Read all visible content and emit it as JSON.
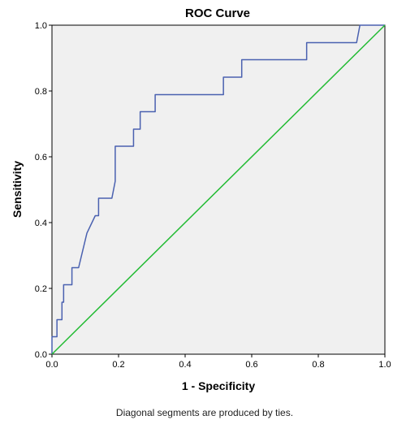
{
  "chart_data": {
    "type": "line",
    "title": "ROC Curve",
    "xlabel": "1 - Specificity",
    "ylabel": "Sensitivity",
    "footnote": "Diagonal segments are produced by ties.",
    "xlim": [
      0,
      1
    ],
    "ylim": [
      0,
      1
    ],
    "x_ticks": [
      "0.0",
      "0.2",
      "0.4",
      "0.6",
      "0.8",
      "1.0"
    ],
    "y_ticks": [
      "0.0",
      "0.2",
      "0.4",
      "0.6",
      "0.8",
      "1.0"
    ],
    "grid": false,
    "plot_background": "#f0f0f0",
    "series": [
      {
        "color": "#4a61b0",
        "x": [
          0.0,
          0.0,
          0.015,
          0.015,
          0.03,
          0.03,
          0.035,
          0.035,
          0.06,
          0.06,
          0.08,
          0.105,
          0.105,
          0.13,
          0.14,
          0.14,
          0.18,
          0.19,
          0.19,
          0.245,
          0.245,
          0.265,
          0.265,
          0.31,
          0.31,
          0.515,
          0.515,
          0.57,
          0.57,
          0.765,
          0.765,
          0.915,
          0.925,
          1.0
        ],
        "y": [
          0.0,
          0.053,
          0.053,
          0.105,
          0.105,
          0.158,
          0.158,
          0.211,
          0.211,
          0.263,
          0.263,
          0.368,
          0.368,
          0.421,
          0.421,
          0.474,
          0.474,
          0.526,
          0.632,
          0.632,
          0.684,
          0.684,
          0.737,
          0.737,
          0.789,
          0.789,
          0.842,
          0.842,
          0.895,
          0.895,
          0.947,
          0.947,
          1.0,
          1.0
        ]
      },
      {
        "color": "#22bb33",
        "x": [
          0,
          1
        ],
        "y": [
          0,
          1
        ]
      }
    ]
  }
}
